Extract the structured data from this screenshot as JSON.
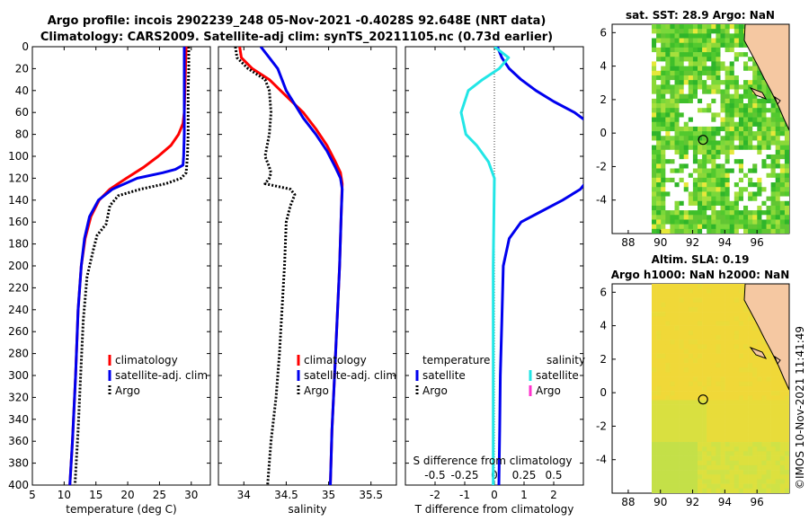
{
  "figure": {
    "title_line1": "Argo profile: incois 2902239_248 05-Nov-2021 -0.4028S 92.648E (NRT data)",
    "title_line2": "Climatology: CARS2009. Satellite-adj clim: synTS_20211105.nc (0.73d earlier)",
    "watermark": "©IMOS 10-Nov-2021 11:41:49"
  },
  "colors": {
    "climatology": "#ff0000",
    "satellite": "#0000ee",
    "argo": "#000000",
    "salinity_satellite": "#22e6e6",
    "salinity_argo": "#ff33cc",
    "land": "#f5c8a2",
    "water_sla": "#f2d63a"
  },
  "chart_data": [
    {
      "id": "temperature",
      "type": "line",
      "title": "",
      "xlabel": "temperature (deg C)",
      "ylabel": "",
      "xlim": [
        5,
        33
      ],
      "ylim": [
        400,
        0
      ],
      "xticks": [
        5,
        10,
        15,
        20,
        25,
        30
      ],
      "yticks": [
        0,
        20,
        40,
        60,
        80,
        100,
        120,
        140,
        160,
        180,
        200,
        220,
        240,
        260,
        280,
        300,
        320,
        340,
        360,
        380,
        400
      ],
      "legend": [
        "climatology",
        "satellite-adj. clim",
        "Argo"
      ],
      "series": [
        {
          "name": "climatology",
          "color": "#ff0000",
          "style": "solid",
          "x": [
            29.2,
            29.1,
            29.0,
            28.9,
            28.7,
            28.0,
            26.8,
            24.8,
            22.5,
            19.8,
            17.2,
            15.5,
            14.2,
            13.3,
            12.7,
            12.2,
            11.8,
            11.3,
            10.9
          ],
          "y": [
            0,
            20,
            40,
            60,
            70,
            80,
            90,
            100,
            110,
            120,
            130,
            140,
            155,
            175,
            200,
            240,
            300,
            360,
            400
          ]
        },
        {
          "name": "satellite-adj. clim",
          "color": "#0000ee",
          "style": "solid",
          "x": [
            28.9,
            28.9,
            28.9,
            28.9,
            28.9,
            28.8,
            28.7,
            27.5,
            25.5,
            21.5,
            17.6,
            15.4,
            14.0,
            13.2,
            12.7,
            12.2,
            11.8,
            11.3,
            10.9
          ],
          "y": [
            0,
            20,
            40,
            60,
            80,
            100,
            108,
            112,
            115,
            120,
            130,
            140,
            155,
            175,
            200,
            240,
            300,
            360,
            400
          ]
        },
        {
          "name": "Argo",
          "color": "#000000",
          "style": "dotted",
          "x": [
            29.6,
            29.6,
            29.5,
            29.5,
            29.5,
            29.4,
            29.2,
            28.4,
            26.0,
            22.0,
            18.5,
            17.2,
            16.6,
            15.2,
            14.6,
            13.6,
            13.0,
            12.6,
            12.2,
            11.7
          ],
          "y": [
            0,
            20,
            40,
            60,
            80,
            100,
            115,
            120,
            125,
            130,
            136,
            145,
            162,
            172,
            185,
            210,
            250,
            300,
            350,
            400
          ]
        }
      ]
    },
    {
      "id": "salinity",
      "type": "line",
      "title": "",
      "xlabel": "salinity",
      "ylabel": "",
      "xlim": [
        33.7,
        35.8
      ],
      "ylim": [
        400,
        0
      ],
      "xticks": [
        34,
        34.5,
        35,
        35.5
      ],
      "legend": [
        "climatology",
        "satellite-adj. clim",
        "Argo"
      ],
      "series": [
        {
          "name": "climatology",
          "color": "#ff0000",
          "style": "solid",
          "x": [
            33.95,
            33.97,
            34.1,
            34.3,
            34.5,
            34.7,
            34.85,
            34.98,
            35.08,
            35.14,
            35.16,
            35.15,
            35.13,
            35.1,
            35.07,
            35.04,
            35.02
          ],
          "y": [
            0,
            10,
            20,
            30,
            45,
            60,
            75,
            90,
            105,
            115,
            125,
            150,
            200,
            250,
            300,
            350,
            400
          ]
        },
        {
          "name": "satellite-adj. clim",
          "color": "#0000ee",
          "style": "solid",
          "x": [
            34.2,
            34.3,
            34.4,
            34.45,
            34.5,
            34.58,
            34.7,
            34.85,
            34.98,
            35.08,
            35.14,
            35.16,
            35.15,
            35.13,
            35.1,
            35.07,
            35.04,
            35.02
          ],
          "y": [
            0,
            10,
            20,
            30,
            40,
            50,
            65,
            80,
            95,
            110,
            120,
            130,
            150,
            200,
            250,
            300,
            350,
            400
          ]
        },
        {
          "name": "Argo",
          "color": "#000000",
          "style": "dotted",
          "x": [
            33.9,
            33.92,
            34.05,
            34.25,
            34.3,
            34.32,
            34.3,
            34.25,
            34.3,
            34.32,
            34.3,
            34.25,
            34.55,
            34.6,
            34.55,
            34.5,
            34.48,
            34.45,
            34.42,
            34.38,
            34.32,
            34.28
          ],
          "y": [
            0,
            10,
            20,
            30,
            40,
            60,
            80,
            100,
            110,
            115,
            120,
            125,
            130,
            135,
            145,
            160,
            200,
            240,
            280,
            320,
            360,
            400
          ]
        }
      ]
    },
    {
      "id": "difference",
      "type": "line",
      "title": "",
      "xlabel": "T difference from climatology",
      "x2label": "S difference from climatology",
      "xlim": [
        -3,
        3
      ],
      "x2lim": [
        -0.75,
        0.75
      ],
      "ylim": [
        400,
        0
      ],
      "xticks": [
        -2,
        -1,
        0,
        1,
        2
      ],
      "x2ticks": [
        -0.5,
        -0.25,
        0,
        0.25,
        0.5
      ],
      "x2ticklabels": [
        "-0.5",
        "-0.25",
        "0",
        "0.25",
        "0.5"
      ],
      "legend_headers": [
        "temperature",
        "salinity"
      ],
      "legend": [
        "satellite",
        "Argo",
        "satellite",
        "Argo"
      ],
      "series": [
        {
          "name": "temperature satellite",
          "axis": "T",
          "color": "#0000ee",
          "style": "solid",
          "x": [
            0.1,
            0.25,
            0.5,
            0.9,
            1.4,
            2.0,
            2.7,
            3.2
          ],
          "y": [
            0,
            10,
            20,
            30,
            40,
            50,
            60,
            70
          ]
        },
        {
          "name": "temperature satellite (deep)",
          "axis": "T",
          "color": "#0000ee",
          "style": "solid",
          "x": [
            3.2,
            2.9,
            2.3,
            1.6,
            0.9,
            0.5,
            0.3,
            0.25,
            0.2,
            0.18,
            0.15
          ],
          "y": [
            120,
            130,
            140,
            150,
            160,
            175,
            200,
            250,
            300,
            350,
            400
          ]
        },
        {
          "name": "salinity satellite",
          "axis": "S",
          "color": "#22e6e6",
          "style": "solid",
          "x": [
            0.0,
            0.12,
            0.04,
            -0.1,
            -0.22,
            -0.28,
            -0.24,
            -0.15,
            -0.05,
            0.0,
            -0.01,
            -0.01,
            -0.01
          ],
          "y": [
            0,
            10,
            20,
            30,
            40,
            60,
            80,
            90,
            105,
            120,
            200,
            300,
            400
          ]
        }
      ]
    },
    {
      "id": "sst_map",
      "type": "heatmap",
      "title": "sat. SST: 28.9 Argo: NaN",
      "xlim": [
        87,
        98
      ],
      "ylim": [
        -6,
        6.5
      ],
      "xticks": [
        88,
        90,
        92,
        94,
        96
      ],
      "yticks": [
        -4,
        -2,
        0,
        2,
        4,
        6
      ],
      "marker": {
        "lon": 92.648,
        "lat": -0.4028
      }
    },
    {
      "id": "sla_map",
      "type": "heatmap",
      "title_line1": "Altim. SLA: 0.19",
      "title_line2": "Argo h1000: NaN h2000: NaN",
      "xlim": [
        87,
        98
      ],
      "ylim": [
        -6,
        6.5
      ],
      "xticks": [
        88,
        90,
        92,
        94,
        96
      ],
      "yticks": [
        -4,
        -2,
        0,
        2,
        4,
        6
      ],
      "marker": {
        "lon": 92.648,
        "lat": -0.4028
      }
    }
  ]
}
